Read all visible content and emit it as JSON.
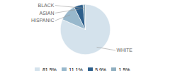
{
  "chart_data": {
    "type": "pie",
    "categories": [
      "WHITE",
      "HISPANIC",
      "ASIAN",
      "BLACK"
    ],
    "values": [
      81.5,
      11.1,
      5.9,
      1.5
    ],
    "value_labels": [
      "81.5%",
      "11.1%",
      "5.9%",
      "1.5%"
    ],
    "colors": [
      "#d4e2ec",
      "#98b8cc",
      "#2d5f8b",
      "#90afc0"
    ],
    "legend": "bottom"
  }
}
